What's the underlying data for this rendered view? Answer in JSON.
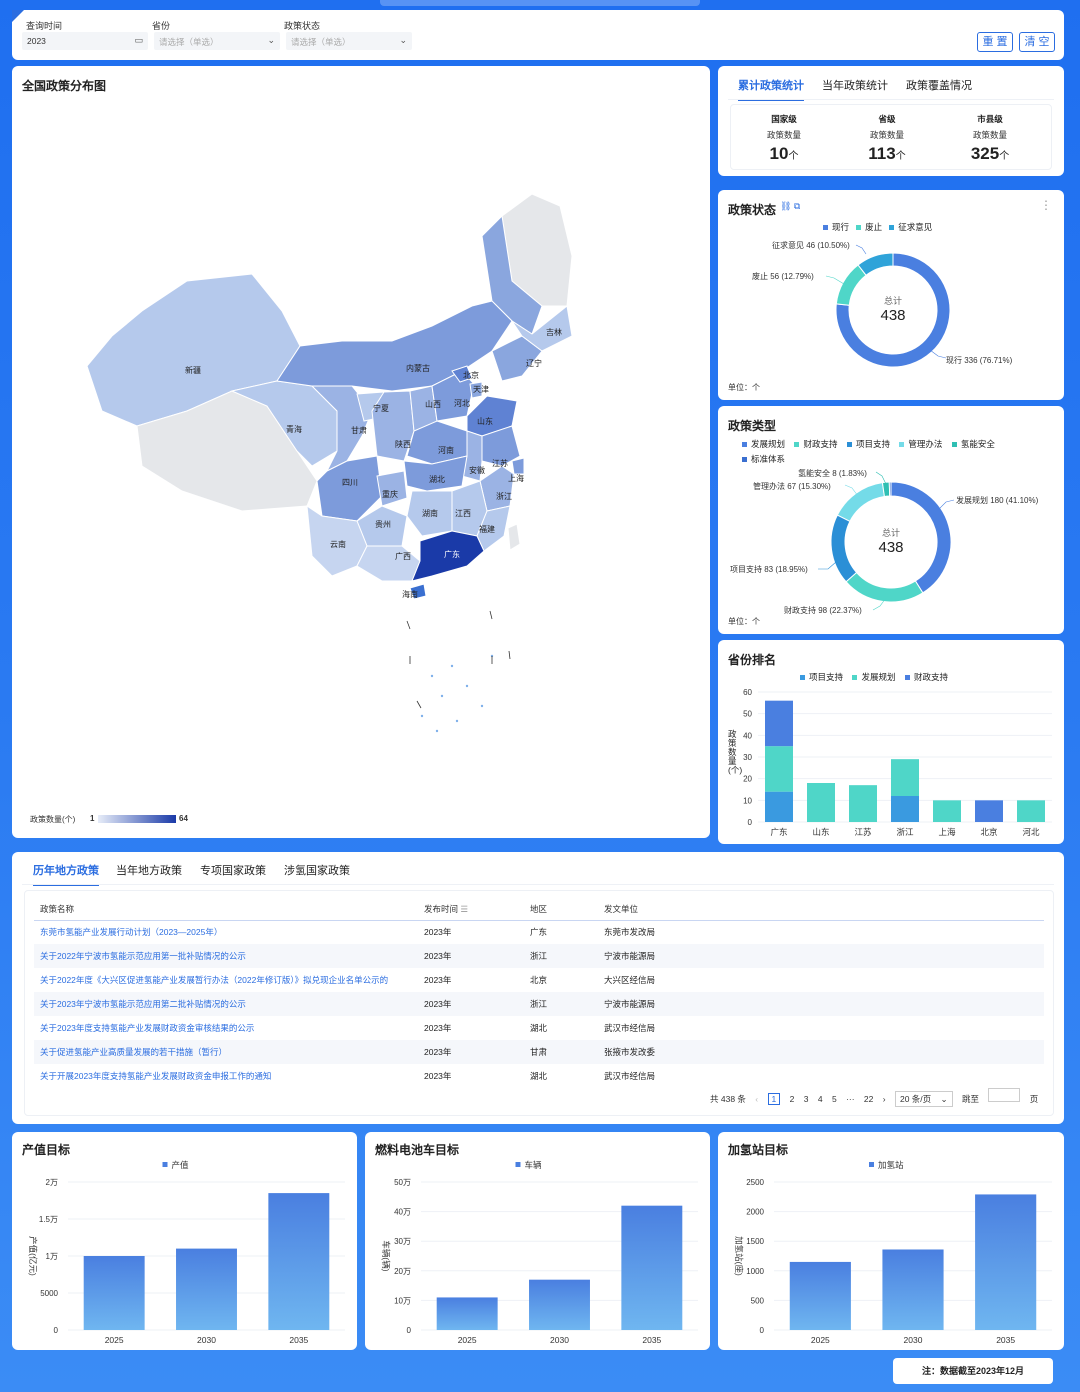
{
  "filters": {
    "query_time_label": "查询时间",
    "query_time_value": "2023",
    "province_label": "省份",
    "province_placeholder": "请选择（单选）",
    "status_label": "政策状态",
    "status_placeholder": "请选择（单选）",
    "reset": "重 置",
    "clear": "清 空"
  },
  "map": {
    "title": "全国政策分布图",
    "legend_label": "政策数量(个)",
    "legend_min": "1",
    "legend_max": "64",
    "provinces": [
      "新疆",
      "内蒙古",
      "吉林",
      "辽宁",
      "北京",
      "天津",
      "河北",
      "山西",
      "宁夏",
      "青海",
      "甘肃",
      "陕西",
      "山东",
      "河南",
      "江苏",
      "安徽",
      "上海",
      "湖北",
      "四川",
      "重庆",
      "浙江",
      "贵州",
      "湖南",
      "江西",
      "福建",
      "云南",
      "广西",
      "广东",
      "海南"
    ]
  },
  "stats": {
    "tabs": [
      "累计政策统计",
      "当年政策统计",
      "政策覆盖情况"
    ],
    "columns": [
      {
        "level": "国家级",
        "label": "政策数量",
        "value": "10",
        "unit": "个"
      },
      {
        "level": "省级",
        "label": "政策数量",
        "value": "113",
        "unit": "个"
      },
      {
        "level": "市县级",
        "label": "政策数量",
        "value": "325",
        "unit": "个"
      }
    ]
  },
  "status": {
    "title": "政策状态",
    "legend": [
      "现行",
      "废止",
      "征求意见"
    ],
    "total_label": "总计",
    "total": "438",
    "unit": "单位：个",
    "labels": [
      "征求意见 46 (10.50%)",
      "废止 56 (12.79%)",
      "现行 336 (76.71%)"
    ]
  },
  "types": {
    "title": "政策类型",
    "legend": [
      "发展规划",
      "财政支持",
      "项目支持",
      "管理办法",
      "氢能安全",
      "标准体系"
    ],
    "total_label": "总计",
    "total": "438",
    "unit": "单位：个",
    "labels": [
      "氢能安全 8 (1.83%)",
      "管理办法 67 (15.30%)",
      "发展规划 180 (41.10%)",
      "项目支持 83 (18.95%)",
      "财政支持 98 (22.37%)"
    ]
  },
  "ranking": {
    "title": "省份排名",
    "legend": [
      "项目支持",
      "发展规划",
      "财政支持"
    ],
    "ylabel": "政策数量(个)"
  },
  "table_section": {
    "tabs": [
      "历年地方政策",
      "当年地方政策",
      "专项国家政策",
      "涉氢国家政策"
    ],
    "headers": [
      "政策名称",
      "发布时间",
      "地区",
      "发文单位"
    ],
    "rows": [
      [
        "东莞市氢能产业发展行动计划（2023—2025年）",
        "2023年",
        "广东",
        "东莞市发改局"
      ],
      [
        "关于2022年宁波市氢能示范应用第一批补贴情况的公示",
        "2023年",
        "浙江",
        "宁波市能源局"
      ],
      [
        "关于2022年度《大兴区促进氢能产业发展暂行办法（2022年修订版）》拟兑现企业名单公示的",
        "2023年",
        "北京",
        "大兴区经信局"
      ],
      [
        "关于2023年宁波市氢能示范应用第二批补贴情况的公示",
        "2023年",
        "浙江",
        "宁波市能源局"
      ],
      [
        "关于2023年度支持氢能产业发展财政资金审核结果的公示",
        "2023年",
        "湖北",
        "武汉市经信局"
      ],
      [
        "关于促进氢能产业高质量发展的若干措施（暂行）",
        "2023年",
        "甘肃",
        "张掖市发改委"
      ],
      [
        "关于开展2023年度支持氢能产业发展财政资金申报工作的通知",
        "2023年",
        "湖北",
        "武汉市经信局"
      ]
    ],
    "pager": {
      "total": "共 438 条",
      "pages": [
        "1",
        "2",
        "3",
        "4",
        "5",
        "···",
        "22"
      ],
      "size": "20 条/页",
      "jump": "跳至",
      "page_suffix": "页"
    }
  },
  "footer_note": "注：数据截至2023年12月",
  "colors": {
    "primary": "#2b6de0",
    "teal": "#4fd6c8",
    "blue_mid": "#3a9ae0",
    "map_dark": "#1a3aa8"
  },
  "chart_data": [
    {
      "type": "pie",
      "title": "政策状态",
      "labels": [
        "现行",
        "废止",
        "征求意见"
      ],
      "values": [
        336,
        56,
        46
      ],
      "colors": [
        "#4a7fe0",
        "#4fd6c8",
        "#2fa3d9"
      ]
    },
    {
      "type": "pie",
      "title": "政策类型",
      "labels": [
        "发展规划",
        "财政支持",
        "项目支持",
        "管理办法",
        "氢能安全",
        "标准体系"
      ],
      "values": [
        180,
        98,
        83,
        67,
        8,
        2
      ],
      "colors": [
        "#4a7fe0",
        "#4fd6c8",
        "#2b8fd6",
        "#74dbe8",
        "#2fbfb3",
        "#3a6fd0"
      ]
    },
    {
      "type": "bar",
      "title": "省份排名",
      "categories": [
        "广东",
        "山东",
        "江苏",
        "浙江",
        "上海",
        "北京",
        "河北"
      ],
      "series": [
        {
          "name": "项目支持",
          "values": [
            14,
            0,
            0,
            12,
            0,
            0,
            0
          ]
        },
        {
          "name": "发展规划",
          "values": [
            21,
            18,
            17,
            17,
            10,
            0,
            10
          ]
        },
        {
          "name": "财政支持",
          "values": [
            21,
            0,
            0,
            0,
            0,
            10,
            0
          ]
        }
      ],
      "ylim": [
        0,
        60
      ],
      "yticks": [
        0,
        10,
        20,
        30,
        40,
        50,
        60
      ],
      "ylabel": "政策数量(个)"
    },
    {
      "type": "bar",
      "title": "产值目标",
      "categories": [
        "2025",
        "2030",
        "2035"
      ],
      "series": [
        {
          "name": "产值",
          "values": [
            10000,
            11000,
            18500
          ]
        }
      ],
      "ylim": [
        0,
        20000
      ],
      "yticks": [
        0,
        5000,
        10000,
        15000,
        20000
      ],
      "ytick_labels": [
        "0",
        "5000",
        "1万",
        "1.5万",
        "2万"
      ],
      "ylabel": "产值(亿元)"
    },
    {
      "type": "bar",
      "title": "燃料电池车目标",
      "categories": [
        "2025",
        "2030",
        "2035"
      ],
      "series": [
        {
          "name": "车辆",
          "values": [
            110000,
            170000,
            420000
          ]
        }
      ],
      "ylim": [
        0,
        500000
      ],
      "yticks": [
        0,
        100000,
        200000,
        300000,
        400000,
        500000
      ],
      "ytick_labels": [
        "0",
        "10万",
        "20万",
        "30万",
        "40万",
        "50万"
      ],
      "ylabel": "车辆(辆)"
    },
    {
      "type": "bar",
      "title": "加氢站目标",
      "categories": [
        "2025",
        "2030",
        "2035"
      ],
      "series": [
        {
          "name": "加氢站",
          "values": [
            1150,
            1360,
            2290
          ]
        }
      ],
      "ylim": [
        0,
        2500
      ],
      "yticks": [
        0,
        500,
        1000,
        1500,
        2000,
        2500
      ],
      "ytick_labels": [
        "0",
        "500",
        "1000",
        "1500",
        "2000",
        "2500"
      ],
      "ylabel": "加氢站(座)"
    }
  ]
}
